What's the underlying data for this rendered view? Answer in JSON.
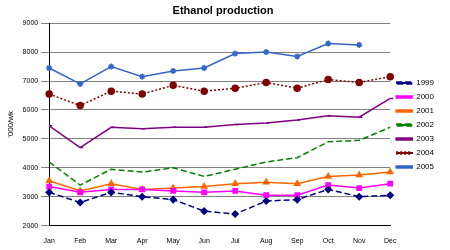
{
  "chart_data": {
    "type": "line",
    "title": "Ethanol production",
    "y_label": "'000/wk",
    "categories": [
      "Jan",
      "Feb",
      "Mar",
      "Apr",
      "May",
      "Jun",
      "Jul",
      "Aug",
      "Sep",
      "Oct",
      "Nov",
      "Dec"
    ],
    "series": [
      {
        "name": "1999",
        "color": "#000080",
        "marker": "diamond",
        "line_style": "dashed",
        "values": [
          3150,
          2800,
          3150,
          3000,
          2900,
          2500,
          2400,
          2850,
          2900,
          3250,
          3000,
          3050
        ]
      },
      {
        "name": "2000",
        "color": "#ff00ff",
        "marker": "square",
        "line_style": "solid",
        "values": [
          3350,
          3150,
          3250,
          3250,
          3200,
          3150,
          3200,
          3050,
          3050,
          3400,
          3300,
          3450
        ]
      },
      {
        "name": "2001",
        "color": "#ff6600",
        "marker": "triangle",
        "line_style": "solid",
        "values": [
          3550,
          3200,
          3450,
          3250,
          3300,
          3350,
          3450,
          3500,
          3450,
          3700,
          3750,
          3850
        ]
      },
      {
        "name": "2002",
        "color": "#008000",
        "marker": "none",
        "line_style": "dashed",
        "values": [
          4200,
          3400,
          3950,
          3850,
          4000,
          3700,
          3950,
          4200,
          4350,
          4900,
          4950,
          5400
        ]
      },
      {
        "name": "2003",
        "color": "#800080",
        "marker": "dash",
        "line_style": "solid",
        "values": [
          5450,
          4700,
          5400,
          5350,
          5400,
          5400,
          5500,
          5550,
          5650,
          5800,
          5750,
          6400
        ]
      },
      {
        "name": "2004",
        "color": "#800000",
        "marker": "circle",
        "line_style": "dotted",
        "values": [
          6550,
          6150,
          6650,
          6550,
          6850,
          6650,
          6750,
          6950,
          6750,
          7050,
          6950,
          7150
        ]
      },
      {
        "name": "2005",
        "color": "#3366cc",
        "marker": "star",
        "line_style": "solid",
        "values": [
          7450,
          6900,
          7500,
          7150,
          7350,
          7450,
          7950,
          8000,
          7850,
          8300,
          8250,
          null
        ]
      }
    ],
    "ylim": [
      2000,
      9000
    ],
    "yticks": [
      2000,
      3000,
      4000,
      5000,
      6000,
      7000,
      8000,
      9000
    ],
    "grid": true,
    "legend": "right"
  }
}
